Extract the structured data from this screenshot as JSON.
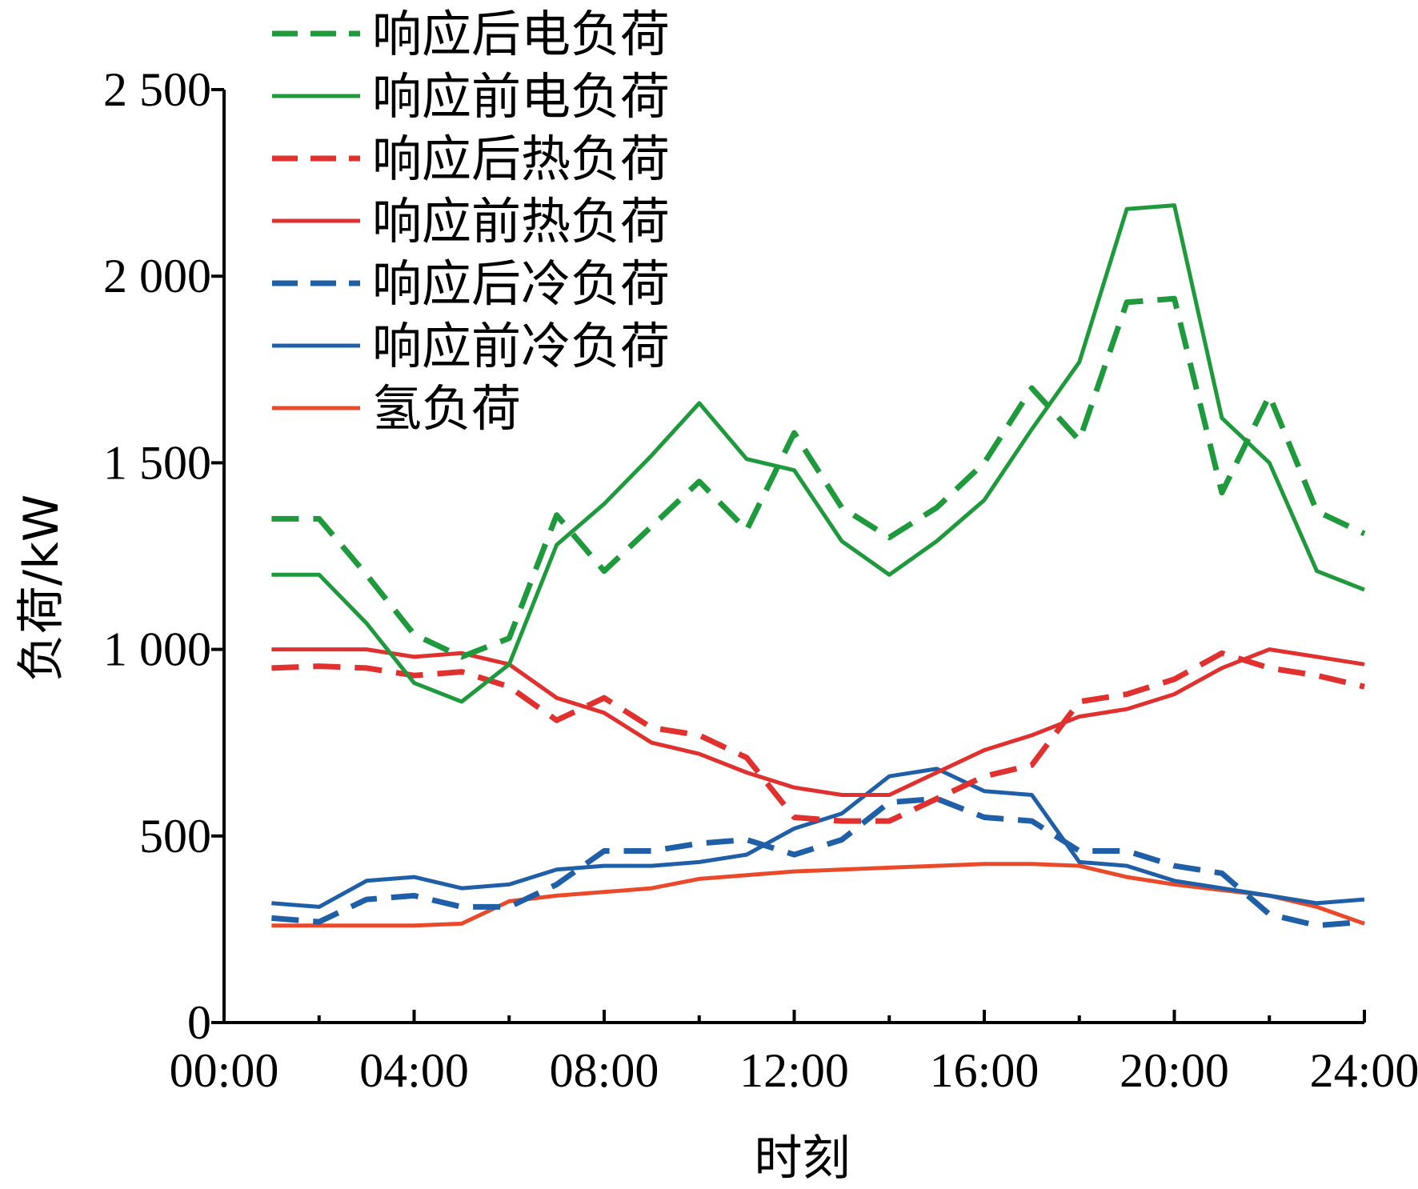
{
  "chart_data": {
    "type": "line",
    "xlabel": "时刻",
    "ylabel": "负荷/kW",
    "xlim": [
      0,
      24
    ],
    "ylim": [
      0,
      2500
    ],
    "x_tick_values": [
      0,
      4,
      8,
      12,
      16,
      20,
      24
    ],
    "x_tick_labels": [
      "00:00",
      "04:00",
      "08:00",
      "12:00",
      "16:00",
      "20:00",
      "24:00"
    ],
    "y_tick_values": [
      0,
      500,
      1000,
      1500,
      2000,
      2500
    ],
    "y_tick_labels": [
      "0",
      "500",
      "1 000",
      "1 500",
      "2 000",
      "2 500"
    ],
    "legend_position": "top-left",
    "grid": false,
    "x": [
      1,
      2,
      3,
      4,
      5,
      6,
      7,
      8,
      9,
      10,
      11,
      12,
      13,
      14,
      15,
      16,
      17,
      18,
      19,
      20,
      21,
      22,
      23,
      24
    ],
    "series": [
      {
        "name": "响应后电负荷",
        "color": "#1e9a3c",
        "dashed": true,
        "values": [
          1350,
          1350,
          1200,
          1040,
          980,
          1030,
          1360,
          1210,
          1330,
          1450,
          1320,
          1580,
          1380,
          1300,
          1380,
          1500,
          1700,
          1560,
          1930,
          1940,
          1420,
          1680,
          1370,
          1310
        ]
      },
      {
        "name": "响应前电负荷",
        "color": "#1e9a3c",
        "dashed": false,
        "values": [
          1200,
          1200,
          1070,
          910,
          860,
          960,
          1280,
          1390,
          1520,
          1660,
          1510,
          1480,
          1290,
          1200,
          1290,
          1400,
          1590,
          1770,
          2180,
          2190,
          1620,
          1500,
          1210,
          1160
        ]
      },
      {
        "name": "响应后热负荷",
        "color": "#e0312e",
        "dashed": true,
        "values": [
          950,
          955,
          950,
          930,
          940,
          900,
          810,
          870,
          790,
          770,
          710,
          550,
          540,
          540,
          600,
          660,
          690,
          860,
          880,
          920,
          990,
          950,
          930,
          900
        ]
      },
      {
        "name": "响应前热负荷",
        "color": "#e0312e",
        "dashed": false,
        "values": [
          1000,
          1000,
          1000,
          980,
          990,
          960,
          870,
          830,
          750,
          720,
          670,
          630,
          610,
          610,
          670,
          730,
          770,
          820,
          840,
          880,
          950,
          1000,
          980,
          960
        ]
      },
      {
        "name": "响应后冷负荷",
        "color": "#1f5fa8",
        "dashed": true,
        "values": [
          280,
          270,
          330,
          340,
          310,
          310,
          370,
          460,
          460,
          480,
          490,
          450,
          490,
          590,
          600,
          550,
          540,
          460,
          460,
          420,
          400,
          290,
          260,
          270
        ]
      },
      {
        "name": "响应前冷负荷",
        "color": "#1f5fa8",
        "dashed": false,
        "values": [
          320,
          310,
          380,
          390,
          360,
          370,
          410,
          420,
          420,
          430,
          450,
          520,
          560,
          660,
          680,
          620,
          610,
          430,
          420,
          380,
          360,
          340,
          320,
          330
        ]
      },
      {
        "name": "氢负荷",
        "color": "#ea4a2a",
        "dashed": false,
        "values": [
          260,
          260,
          260,
          260,
          265,
          325,
          340,
          350,
          360,
          385,
          395,
          405,
          410,
          415,
          420,
          425,
          425,
          420,
          390,
          370,
          355,
          340,
          310,
          265
        ]
      }
    ]
  }
}
